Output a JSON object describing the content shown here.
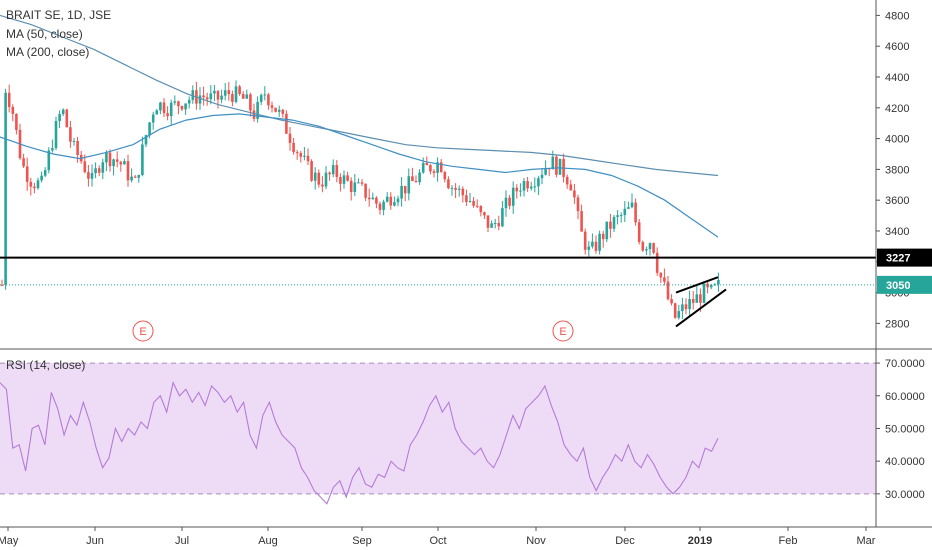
{
  "header": {
    "symbol_line": "BRAIT SE, 1D, JSE",
    "ma50_label": "MA (50, close)",
    "ma200_label": "MA (200, close)",
    "rsi_label": "RSI (14, close)"
  },
  "colors": {
    "up": "#26a69a",
    "down": "#ef5350",
    "ma50": "#3f8fc4",
    "ma200": "#5b8fb0",
    "rsi_line": "#b57bd6",
    "rsi_band": "#eedcf7",
    "support": "#000000",
    "price_line": "#26a69a"
  },
  "chart_data": [
    {
      "type": "candlestick",
      "title": "BRAIT SE, 1D, JSE",
      "ylim": [
        2640,
        4900
      ],
      "y_ticks": [
        "4800",
        "4600",
        "4400",
        "4200",
        "4000",
        "3800",
        "3600",
        "3400",
        "3200",
        "3000",
        "2800"
      ],
      "x_ticks": [
        "May",
        "Jun",
        "Jul",
        "Aug",
        "Sep",
        "Oct",
        "Nov",
        "Dec",
        "2019",
        "Feb",
        "Mar"
      ],
      "support_level": {
        "value": 3227,
        "label": "3227"
      },
      "last_price": {
        "value": 3050,
        "label": "3050"
      },
      "earnings_markers": [
        "E",
        "E"
      ],
      "ma50_approx": [
        4010,
        3950,
        3900,
        3870,
        3910,
        3960,
        4060,
        4120,
        4150,
        4160,
        4140,
        4120,
        4080,
        4020,
        3960,
        3900,
        3850,
        3820,
        3800,
        3780,
        3800,
        3810,
        3800,
        3760,
        3690,
        3600,
        3480,
        3360
      ],
      "ma200_approx": [
        4800,
        4740,
        4660,
        4580,
        4480,
        4380,
        4290,
        4220,
        4170,
        4120,
        4080,
        4040,
        4000,
        3960,
        3940,
        3930,
        3920,
        3910,
        3890,
        3860,
        3830,
        3800,
        3780,
        3760
      ],
      "triangle_pattern": {
        "upper": [
          3000,
          3100
        ],
        "lower": [
          2780,
          3020
        ]
      }
    },
    {
      "type": "line",
      "title": "RSI (14, close)",
      "ylim": [
        22,
        74
      ],
      "y_ticks": [
        "70.0000",
        "60.0000",
        "50.0000",
        "40.0000",
        "30.0000"
      ],
      "band": [
        30,
        70
      ],
      "series": [
        {
          "values": [
            64,
            62,
            44,
            45,
            37,
            50,
            51,
            45,
            61,
            56,
            48,
            54,
            51,
            58,
            52,
            44,
            38,
            41,
            50,
            46,
            50,
            48,
            52,
            50,
            58,
            60,
            55,
            64,
            60,
            62,
            58,
            61,
            57,
            63,
            61,
            58,
            60,
            55,
            58,
            48,
            44,
            54,
            58,
            52,
            48,
            46,
            44,
            38,
            35,
            31,
            29,
            27,
            32,
            34,
            29,
            35,
            38,
            33,
            32,
            36,
            35,
            40,
            38,
            37,
            45,
            48,
            52,
            57,
            60,
            55,
            58,
            50,
            46,
            44,
            42,
            44,
            40,
            38,
            42,
            48,
            54,
            50,
            56,
            58,
            60,
            63,
            57,
            52,
            45,
            42,
            40,
            44,
            35,
            31,
            35,
            38,
            42,
            40,
            45,
            40,
            38,
            42,
            39,
            35,
            32,
            30,
            32,
            35,
            40,
            38,
            44,
            43,
            47
          ]
        }
      ]
    }
  ]
}
